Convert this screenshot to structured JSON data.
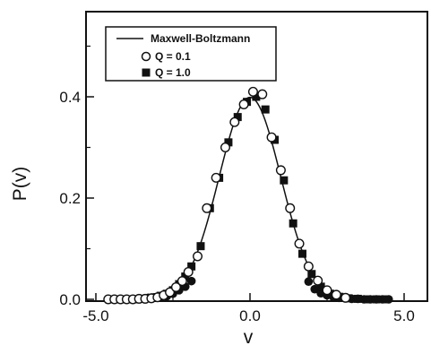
{
  "chart_data": {
    "type": "scatter",
    "title": "",
    "xlabel": "v",
    "ylabel": "P(v)",
    "xlim": [
      -5.0,
      5.0
    ],
    "ylim": [
      0.0,
      0.56
    ],
    "xticks": [
      {
        "value": -5.0,
        "label": "-5.0"
      },
      {
        "value": 0.0,
        "label": "0.0"
      },
      {
        "value": 5.0,
        "label": "5.0"
      }
    ],
    "yticks": [
      {
        "value": 0.0,
        "label": "0.0"
      },
      {
        "value": 0.2,
        "label": "0.2"
      },
      {
        "value": 0.4,
        "label": "0.4"
      }
    ],
    "grid": false,
    "legend_position": "top-left",
    "series": [
      {
        "name": "Maxwell-Boltzmann",
        "kind": "line",
        "function": "gaussian",
        "mean": 0.0,
        "sd": 1.0,
        "x_range": [
          -3.9,
          4.0
        ]
      },
      {
        "name": "Q = 0.1",
        "kind": "open-circle",
        "x": [
          -4.6,
          -4.4,
          -4.2,
          -4.0,
          -3.8,
          -3.6,
          -3.4,
          -3.2,
          -3.0,
          -2.8,
          -2.6,
          -2.4,
          -2.2,
          -2.0,
          -1.7,
          -1.4,
          -1.1,
          -0.8,
          -0.5,
          -0.2,
          0.1,
          0.4,
          0.7,
          1.0,
          1.3,
          1.6,
          1.9,
          2.2,
          2.5,
          2.8,
          3.1
        ],
        "y": [
          0.0,
          0.0,
          0.0,
          0.0,
          0.0,
          0.001,
          0.001,
          0.002,
          0.004,
          0.008,
          0.014,
          0.024,
          0.036,
          0.054,
          0.085,
          0.18,
          0.24,
          0.3,
          0.35,
          0.385,
          0.41,
          0.405,
          0.32,
          0.255,
          0.18,
          0.11,
          0.065,
          0.037,
          0.018,
          0.009,
          0.003
        ]
      },
      {
        "name": "Q = 1.0",
        "kind": "filled-square",
        "x": [
          -3.7,
          -3.5,
          -3.3,
          -3.1,
          -2.9,
          -2.7,
          -2.5,
          -2.3,
          -2.1,
          -1.9,
          -1.6,
          -1.3,
          -1.0,
          -0.7,
          -0.4,
          -0.1,
          0.2,
          0.5,
          0.8,
          1.1,
          1.4,
          1.7,
          2.0,
          2.3,
          2.6,
          2.9,
          3.2,
          3.5,
          3.8,
          4.1,
          4.4
        ],
        "y": [
          0.0,
          0.001,
          0.002,
          0.004,
          0.007,
          0.011,
          0.018,
          0.03,
          0.045,
          0.065,
          0.105,
          0.18,
          0.24,
          0.31,
          0.36,
          0.39,
          0.4,
          0.375,
          0.315,
          0.235,
          0.15,
          0.09,
          0.05,
          0.025,
          0.011,
          0.005,
          0.002,
          0.001,
          0.0,
          0.0,
          0.0
        ]
      },
      {
        "name": "",
        "kind": "filled-circle",
        "x": [
          -3.3,
          -3.1,
          -2.9,
          -2.7,
          -2.5,
          -2.3,
          -2.1,
          -1.9,
          1.9,
          2.1,
          2.3,
          2.5,
          2.7,
          2.9,
          3.1,
          3.3,
          3.5,
          3.7,
          3.9,
          4.1,
          4.3,
          4.5
        ],
        "y": [
          0.003,
          0.004,
          0.005,
          0.006,
          0.011,
          0.018,
          0.025,
          0.036,
          0.035,
          0.02,
          0.012,
          0.008,
          0.005,
          0.003,
          0.002,
          0.001,
          0.001,
          0.0,
          0.0,
          0.0,
          0.0,
          0.0
        ]
      }
    ]
  }
}
